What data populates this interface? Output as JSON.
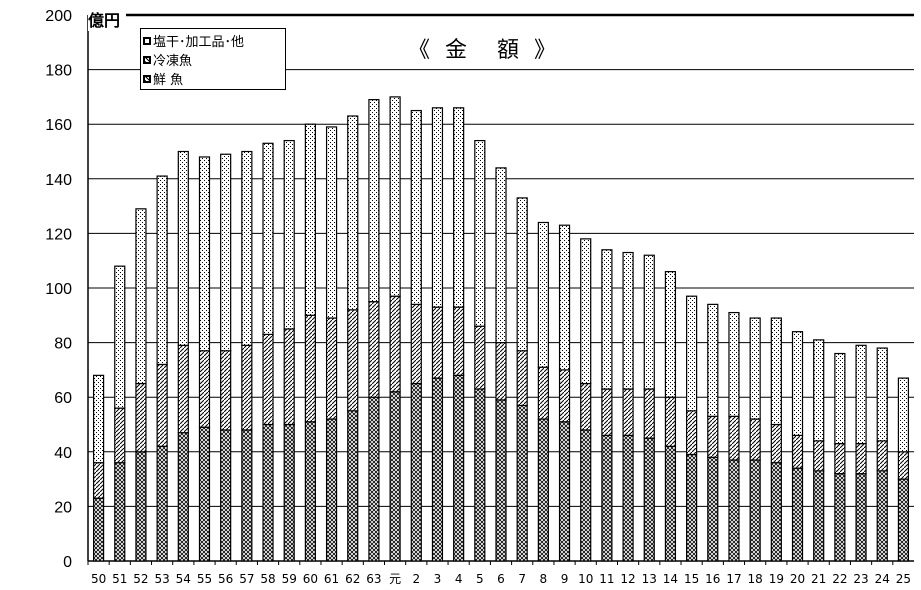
{
  "chart_data": {
    "type": "bar",
    "stacked": true,
    "title": "《 金　額 》",
    "unit_label": "億円",
    "categories": [
      "50",
      "51",
      "52",
      "53",
      "54",
      "55",
      "56",
      "57",
      "58",
      "59",
      "60",
      "61",
      "62",
      "63",
      "元",
      "2",
      "3",
      "4",
      "5",
      "6",
      "7",
      "8",
      "9",
      "10",
      "11",
      "12",
      "13",
      "14",
      "15",
      "16",
      "17",
      "18",
      "19",
      "20",
      "21",
      "22",
      "23",
      "24",
      "25"
    ],
    "ylim": [
      0,
      200
    ],
    "yticks": [
      "0",
      "20",
      "40",
      "60",
      "80",
      "100",
      "120",
      "140",
      "160",
      "180",
      "200"
    ],
    "grid": true,
    "legend_position": "top-left",
    "series": [
      {
        "name": "鮮 魚",
        "pattern": "cross-hatch",
        "values": [
          23,
          36,
          40,
          42,
          47,
          49,
          48,
          48,
          50,
          50,
          51,
          52,
          55,
          60,
          62,
          65,
          67,
          68,
          63,
          59,
          57,
          52,
          51,
          48,
          46,
          46,
          45,
          42,
          39,
          38,
          37,
          37,
          36,
          34,
          33,
          32,
          32,
          33,
          30
        ]
      },
      {
        "name": "冷凍魚",
        "pattern": "diagonal",
        "values": [
          13,
          20,
          25,
          30,
          32,
          28,
          29,
          31,
          33,
          35,
          39,
          37,
          37,
          35,
          35,
          29,
          26,
          25,
          23,
          21,
          20,
          19,
          19,
          17,
          17,
          17,
          18,
          18,
          16,
          15,
          16,
          15,
          14,
          12,
          11,
          11,
          11,
          11,
          10
        ]
      },
      {
        "name": "塩干･加工品･他",
        "pattern": "dotted",
        "values": [
          32,
          52,
          64,
          69,
          71,
          71,
          72,
          71,
          70,
          69,
          70,
          70,
          71,
          74,
          73,
          71,
          73,
          73,
          68,
          64,
          56,
          53,
          53,
          53,
          51,
          50,
          49,
          46,
          42,
          41,
          38,
          37,
          39,
          38,
          37,
          33,
          36,
          34,
          27
        ]
      }
    ]
  }
}
